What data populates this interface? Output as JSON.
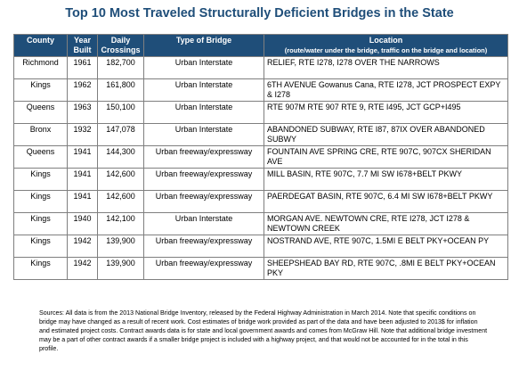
{
  "title": "Top 10 Most Traveled Structurally Deficient Bridges in the State",
  "headers": {
    "county": "County",
    "year": "Year Built",
    "crossings": "Daily Crossings",
    "type": "Type of Bridge",
    "location": "Location",
    "location_sub": "(route/water under the bridge, traffic on the bridge and location)"
  },
  "rows": [
    {
      "county": "Richmond",
      "year": "1961",
      "crossings": "182,700",
      "type": "Urban Interstate",
      "location": "RELIEF, RTE I278, I278 OVER THE NARROWS"
    },
    {
      "county": "Kings",
      "year": "1962",
      "crossings": "161,800",
      "type": "Urban Interstate",
      "location": "6TH AVENUE Gowanus Cana, RTE I278, JCT PROSPECT EXPY & I278"
    },
    {
      "county": "Queens",
      "year": "1963",
      "crossings": "150,100",
      "type": "Urban Interstate",
      "location": "RTE 907M  RTE 907  RTE 9, RTE I495, JCT GCP+I495"
    },
    {
      "county": "Bronx",
      "year": "1932",
      "crossings": "147,078",
      "type": "Urban Interstate",
      "location": "ABANDONED SUBWAY, RTE I87, 87IX OVER ABANDONED SUBWY"
    },
    {
      "county": "Queens",
      "year": "1941",
      "crossings": "144,300",
      "type": "Urban freeway/expressway",
      "location": "FOUNTAIN AVE  SPRING CRE, RTE 907C, 907CX SHERIDAN AVE"
    },
    {
      "county": "Kings",
      "year": "1941",
      "crossings": "142,600",
      "type": "Urban freeway/expressway",
      "location": "MILL BASIN, RTE 907C, 7.7 MI SW I678+BELT PKWY"
    },
    {
      "county": "Kings",
      "year": "1941",
      "crossings": "142,600",
      "type": "Urban freeway/expressway",
      "location": "PAERDEGAT BASIN, RTE 907C, 6.4 MI SW I678+BELT PKWY"
    },
    {
      "county": "Kings",
      "year": "1940",
      "crossings": "142,100",
      "type": "Urban Interstate",
      "location": "MORGAN AVE.  NEWTOWN CRE, RTE I278, JCT I278 & NEWTOWN CREEK"
    },
    {
      "county": "Kings",
      "year": "1942",
      "crossings": "139,900",
      "type": "Urban freeway/expressway",
      "location": "NOSTRAND AVE, RTE 907C, 1.5MI E BELT PKY+OCEAN PY"
    },
    {
      "county": "Kings",
      "year": "1942",
      "crossings": "139,900",
      "type": "Urban freeway/expressway",
      "location": "SHEEPSHEAD BAY RD, RTE 907C, .8MI E BELT PKY+OCEAN PKY"
    }
  ],
  "sources": "Sources: All data is from the 2013 National Bridge Inventory, released by the Federal Highway Administration in March 2014. Note that specific conditions on bridge may have changed as a result of recent work. Cost estimates of bridge work provided as part of the data and have been adjusted to 2013$ for inflation and estimated project costs. Contract awards data is for state and local government awards and comes from McGraw Hill. Note that additional bridge investment may be a part of other contract awards if a smaller bridge project is included with a highway project, and that would not be accounted for in the total in this profile."
}
